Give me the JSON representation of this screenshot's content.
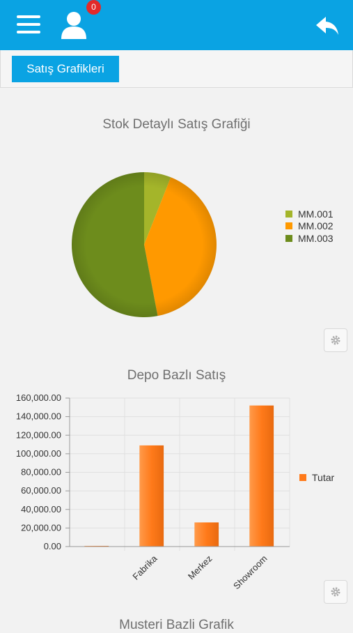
{
  "header": {
    "notification_count": "0",
    "colors": {
      "bar": "#0aa3e3",
      "badge": "#e22a2a"
    }
  },
  "toolbar": {
    "tab_label": "Satış Grafikleri"
  },
  "chart_data": [
    {
      "type": "pie",
      "title": "Stok Detaylı Satış Grafiği",
      "labels": [
        "MM.001",
        "MM.002",
        "MM.003"
      ],
      "values": [
        6,
        41,
        53
      ],
      "colors": [
        "#a4b52a",
        "#ff9900",
        "#6d8c1c"
      ],
      "legend": "right"
    },
    {
      "type": "bar",
      "title": "Depo Bazlı Satış",
      "categories": [
        "",
        "Fabrika",
        "Merkez",
        "Showroom"
      ],
      "series": [
        {
          "name": "Tutar",
          "values": [
            0,
            109000,
            26000,
            152000
          ]
        }
      ],
      "y_ticks": [
        "0.00",
        "20,000.00",
        "40,000.00",
        "60,000.00",
        "80,000.00",
        "100,000.00",
        "120,000.00",
        "140,000.00",
        "160,000.00"
      ],
      "ylim": [
        0,
        160000
      ],
      "grid": true,
      "legend": "right",
      "color": "#ff7a1a"
    }
  ],
  "third_chart": {
    "title": "Musteri Bazli Grafik"
  }
}
